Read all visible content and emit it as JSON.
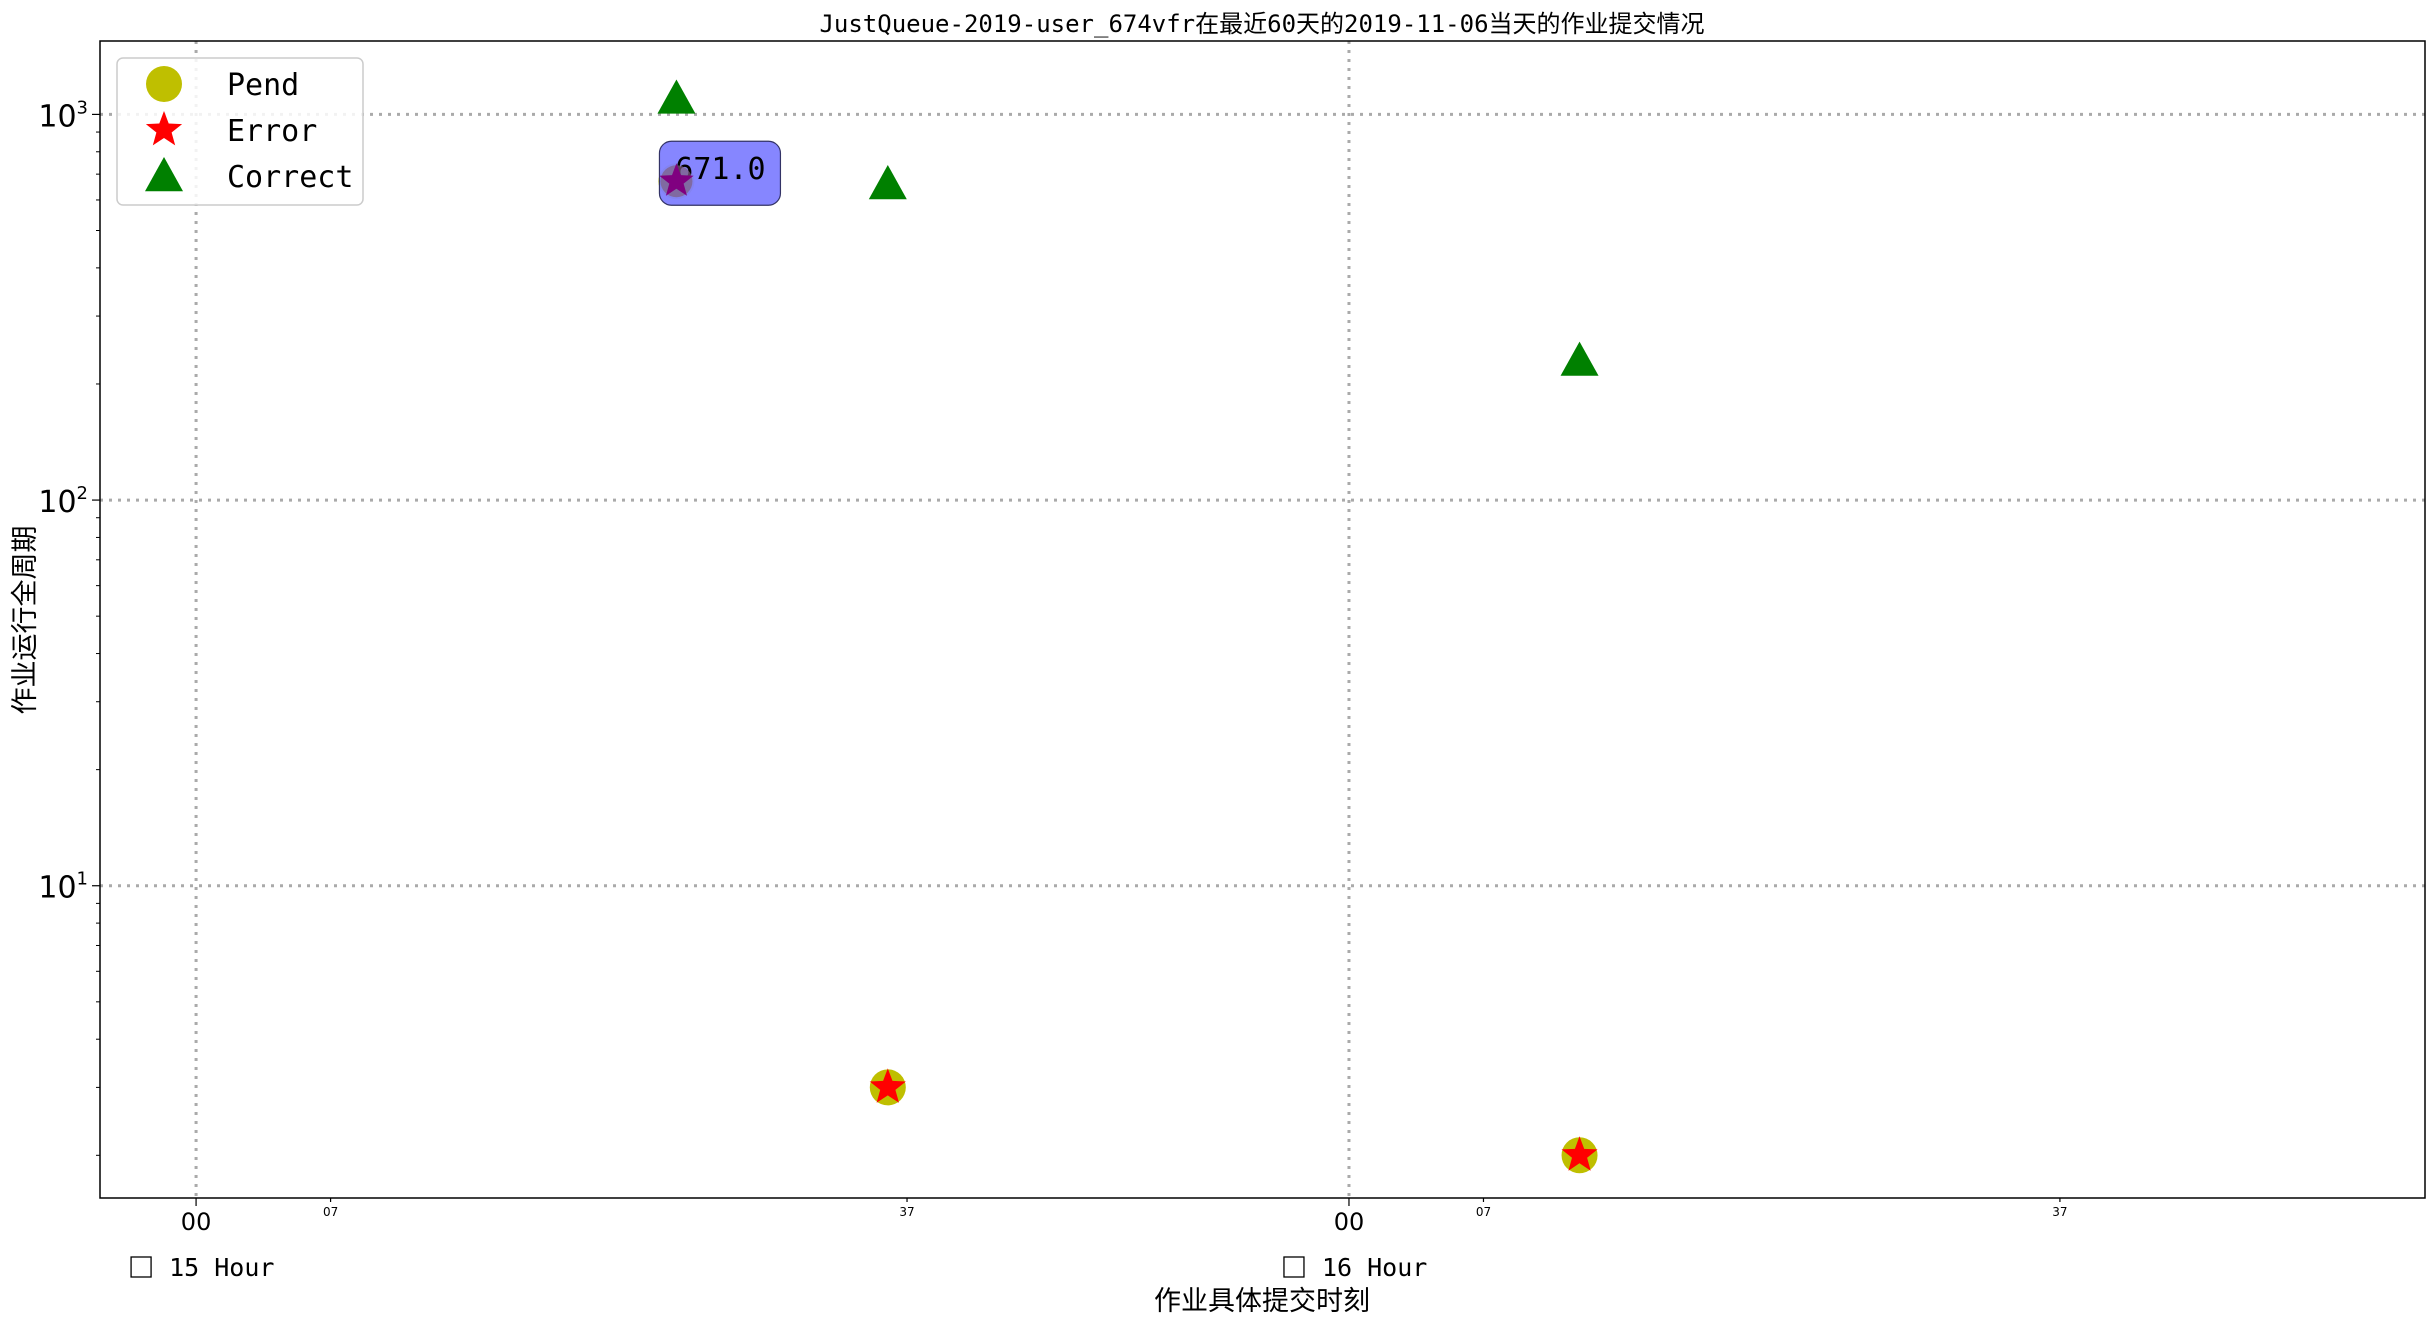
{
  "chart_data": {
    "type": "scatter",
    "title": "JustQueue-2019-user_674vfr在最近60天的2019-11-06当天的作业提交情况",
    "xlabel": "作业具体提交时刻",
    "ylabel": "作业运行全周期",
    "yscale": "log",
    "ylim": [
      1.55,
      1550
    ],
    "xlim": [
      "15:00 -0:05",
      "16:00 +0:56"
    ],
    "grid": true,
    "legend_position": "top-left",
    "x_ticks": [
      {
        "value": "15:00",
        "label": "00",
        "size": "major"
      },
      {
        "value": "15:07",
        "label": "07",
        "size": "minor"
      },
      {
        "value": "15:37",
        "label": "37",
        "size": "minor"
      },
      {
        "value": "16:00",
        "label": "00",
        "size": "major"
      },
      {
        "value": "16:07",
        "label": "07",
        "size": "minor"
      },
      {
        "value": "16:37",
        "label": "37",
        "size": "minor"
      }
    ],
    "hour_labels": [
      {
        "value": "15:00",
        "text": "15 Hour"
      },
      {
        "value": "16:00",
        "text": "16 Hour"
      }
    ],
    "y_ticks": [
      {
        "value": 10,
        "base": "10",
        "exp": "1"
      },
      {
        "value": 100,
        "base": "10",
        "exp": "2"
      },
      {
        "value": 1000,
        "base": "10",
        "exp": "3"
      }
    ],
    "series": [
      {
        "name": "Pend",
        "marker": "circle",
        "color": "#bfbf00",
        "points": [
          {
            "x": "15:25",
            "y": 671
          },
          {
            "x": "15:36",
            "y": 3
          },
          {
            "x": "16:12",
            "y": 2
          }
        ]
      },
      {
        "name": "Error",
        "marker": "star",
        "color": "#ff0000",
        "points": [
          {
            "x": "15:36",
            "y": 3
          },
          {
            "x": "16:12",
            "y": 2
          }
        ]
      },
      {
        "name": "Correct",
        "marker": "triangle",
        "color": "#008000",
        "points": [
          {
            "x": "15:25",
            "y": 1100
          },
          {
            "x": "15:36",
            "y": 660
          },
          {
            "x": "16:12",
            "y": 230
          }
        ]
      }
    ],
    "overlay_points": [
      {
        "x": "15:25",
        "y": 671,
        "marker": "star",
        "color": "#800080"
      }
    ],
    "annotations": [
      {
        "x": "15:25",
        "y": 671,
        "text": "671.0",
        "box_color": "#8080ff"
      }
    ]
  }
}
